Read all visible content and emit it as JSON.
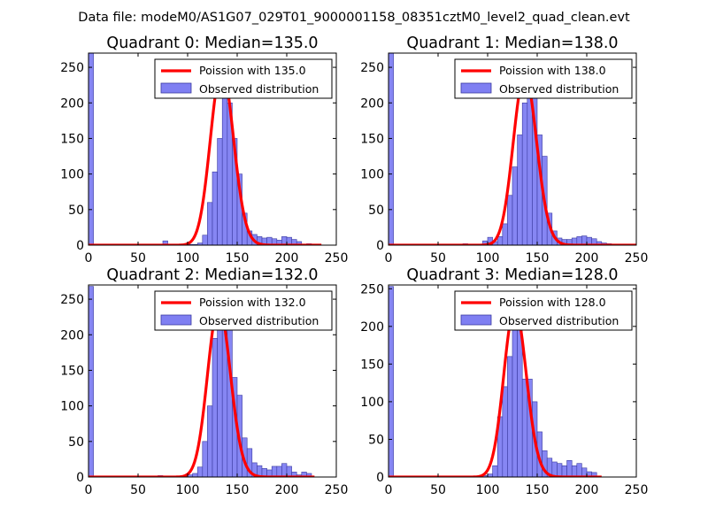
{
  "figure_title": "Data file: modeM0/AS1G07_029T01_9000001158_08351cztM0_level2_quad_clean.evt",
  "colors": {
    "hist_fill": "#7f7ff2",
    "hist_edge": "#3a3aa0",
    "poisson_line": "#ff0000",
    "axes": "#000000"
  },
  "chart_data": [
    {
      "type": "bar",
      "title": "Quadrant 0: Median=135.0",
      "median": 135.0,
      "xlim": [
        0,
        250
      ],
      "ylim": [
        0,
        270
      ],
      "xticks": [
        0,
        50,
        100,
        150,
        200,
        250
      ],
      "xtick_labels": [
        "0",
        "50",
        "100",
        "150",
        "200",
        "250"
      ],
      "yticks": [
        0,
        50,
        100,
        150,
        200,
        250
      ],
      "ytick_labels": [
        "0",
        "50",
        "100",
        "150",
        "200",
        "250"
      ],
      "legend": [
        "Poission with 135.0",
        "Observed distribution"
      ],
      "bin_width": 5,
      "bins": [
        {
          "x": 0,
          "count": 270
        },
        {
          "x": 75,
          "count": 6
        },
        {
          "x": 100,
          "count": 1
        },
        {
          "x": 105,
          "count": 1
        },
        {
          "x": 110,
          "count": 3
        },
        {
          "x": 115,
          "count": 14
        },
        {
          "x": 120,
          "count": 60
        },
        {
          "x": 125,
          "count": 103
        },
        {
          "x": 130,
          "count": 150
        },
        {
          "x": 135,
          "count": 248
        },
        {
          "x": 140,
          "count": 200
        },
        {
          "x": 145,
          "count": 150
        },
        {
          "x": 150,
          "count": 100
        },
        {
          "x": 155,
          "count": 45
        },
        {
          "x": 160,
          "count": 20
        },
        {
          "x": 165,
          "count": 15
        },
        {
          "x": 170,
          "count": 12
        },
        {
          "x": 175,
          "count": 10
        },
        {
          "x": 180,
          "count": 11
        },
        {
          "x": 185,
          "count": 9
        },
        {
          "x": 190,
          "count": 7
        },
        {
          "x": 195,
          "count": 12
        },
        {
          "x": 200,
          "count": 11
        },
        {
          "x": 205,
          "count": 8
        },
        {
          "x": 210,
          "count": 5
        },
        {
          "x": 220,
          "count": 2
        }
      ],
      "curve_x_range": [
        0,
        235
      ]
    },
    {
      "type": "bar",
      "title": "Quadrant 1: Median=138.0",
      "median": 138.0,
      "xlim": [
        0,
        250
      ],
      "ylim": [
        0,
        270
      ],
      "xticks": [
        0,
        50,
        100,
        150,
        200,
        250
      ],
      "xtick_labels": [
        "0",
        "50",
        "100",
        "150",
        "200",
        "250"
      ],
      "yticks": [
        0,
        50,
        100,
        150,
        200,
        250
      ],
      "ytick_labels": [
        "0",
        "50",
        "100",
        "150",
        "200",
        "250"
      ],
      "legend": [
        "Poission with 138.0",
        "Observed distribution"
      ],
      "bin_width": 5,
      "bins": [
        {
          "x": 0,
          "count": 270
        },
        {
          "x": 75,
          "count": 2
        },
        {
          "x": 90,
          "count": 1
        },
        {
          "x": 95,
          "count": 6
        },
        {
          "x": 100,
          "count": 11
        },
        {
          "x": 105,
          "count": 5
        },
        {
          "x": 110,
          "count": 12
        },
        {
          "x": 115,
          "count": 30
        },
        {
          "x": 120,
          "count": 70
        },
        {
          "x": 125,
          "count": 110
        },
        {
          "x": 130,
          "count": 155
        },
        {
          "x": 135,
          "count": 200
        },
        {
          "x": 140,
          "count": 240
        },
        {
          "x": 145,
          "count": 210
        },
        {
          "x": 150,
          "count": 155
        },
        {
          "x": 155,
          "count": 125
        },
        {
          "x": 160,
          "count": 45
        },
        {
          "x": 165,
          "count": 20
        },
        {
          "x": 170,
          "count": 10
        },
        {
          "x": 175,
          "count": 8
        },
        {
          "x": 180,
          "count": 8
        },
        {
          "x": 185,
          "count": 10
        },
        {
          "x": 190,
          "count": 12
        },
        {
          "x": 195,
          "count": 13
        },
        {
          "x": 200,
          "count": 11
        },
        {
          "x": 205,
          "count": 9
        },
        {
          "x": 210,
          "count": 5
        },
        {
          "x": 215,
          "count": 3
        },
        {
          "x": 220,
          "count": 2
        }
      ],
      "curve_x_range": [
        0,
        250
      ]
    },
    {
      "type": "bar",
      "title": "Quadrant 2: Median=132.0",
      "median": 132.0,
      "xlim": [
        0,
        250
      ],
      "ylim": [
        0,
        270
      ],
      "xticks": [
        0,
        50,
        100,
        150,
        200,
        250
      ],
      "xtick_labels": [
        "0",
        "50",
        "100",
        "150",
        "200",
        "250"
      ],
      "yticks": [
        0,
        50,
        100,
        150,
        200,
        250
      ],
      "ytick_labels": [
        "0",
        "50",
        "100",
        "150",
        "200",
        "250"
      ],
      "legend": [
        "Poission with 132.0",
        "Observed distribution"
      ],
      "bin_width": 5,
      "bins": [
        {
          "x": 0,
          "count": 268
        },
        {
          "x": 70,
          "count": 2
        },
        {
          "x": 95,
          "count": 2
        },
        {
          "x": 100,
          "count": 3
        },
        {
          "x": 105,
          "count": 5
        },
        {
          "x": 110,
          "count": 14
        },
        {
          "x": 115,
          "count": 50
        },
        {
          "x": 120,
          "count": 100
        },
        {
          "x": 125,
          "count": 195
        },
        {
          "x": 130,
          "count": 240
        },
        {
          "x": 135,
          "count": 215
        },
        {
          "x": 140,
          "count": 230
        },
        {
          "x": 145,
          "count": 140
        },
        {
          "x": 150,
          "count": 115
        },
        {
          "x": 155,
          "count": 55
        },
        {
          "x": 160,
          "count": 40
        },
        {
          "x": 165,
          "count": 20
        },
        {
          "x": 170,
          "count": 16
        },
        {
          "x": 175,
          "count": 12
        },
        {
          "x": 180,
          "count": 10
        },
        {
          "x": 185,
          "count": 15
        },
        {
          "x": 190,
          "count": 15
        },
        {
          "x": 195,
          "count": 19
        },
        {
          "x": 200,
          "count": 15
        },
        {
          "x": 205,
          "count": 7
        },
        {
          "x": 210,
          "count": 3
        },
        {
          "x": 215,
          "count": 7
        },
        {
          "x": 220,
          "count": 5
        }
      ],
      "curve_x_range": [
        0,
        228
      ]
    },
    {
      "type": "bar",
      "title": "Quadrant 3: Median=128.0",
      "median": 128.0,
      "xlim": [
        0,
        250
      ],
      "ylim": [
        0,
        255
      ],
      "xticks": [
        0,
        50,
        100,
        150,
        200,
        250
      ],
      "xtick_labels": [
        "0",
        "50",
        "100",
        "150",
        "200",
        "250"
      ],
      "yticks": [
        0,
        50,
        100,
        150,
        200,
        250
      ],
      "ytick_labels": [
        "0",
        "50",
        "100",
        "150",
        "200",
        "250"
      ],
      "legend": [
        "Poission with 128.0",
        "Observed distribution"
      ],
      "bin_width": 5,
      "bins": [
        {
          "x": 0,
          "count": 253
        },
        {
          "x": 70,
          "count": 1
        },
        {
          "x": 90,
          "count": 2
        },
        {
          "x": 95,
          "count": 2
        },
        {
          "x": 100,
          "count": 4
        },
        {
          "x": 105,
          "count": 15
        },
        {
          "x": 110,
          "count": 80
        },
        {
          "x": 115,
          "count": 120
        },
        {
          "x": 120,
          "count": 160
        },
        {
          "x": 125,
          "count": 225
        },
        {
          "x": 130,
          "count": 215
        },
        {
          "x": 135,
          "count": 130
        },
        {
          "x": 140,
          "count": 130
        },
        {
          "x": 145,
          "count": 100
        },
        {
          "x": 150,
          "count": 60
        },
        {
          "x": 155,
          "count": 35
        },
        {
          "x": 160,
          "count": 25
        },
        {
          "x": 165,
          "count": 20
        },
        {
          "x": 170,
          "count": 18
        },
        {
          "x": 175,
          "count": 15
        },
        {
          "x": 180,
          "count": 22
        },
        {
          "x": 185,
          "count": 15
        },
        {
          "x": 190,
          "count": 18
        },
        {
          "x": 195,
          "count": 12
        },
        {
          "x": 200,
          "count": 7
        },
        {
          "x": 205,
          "count": 6
        }
      ],
      "curve_x_range": [
        0,
        215
      ]
    }
  ]
}
